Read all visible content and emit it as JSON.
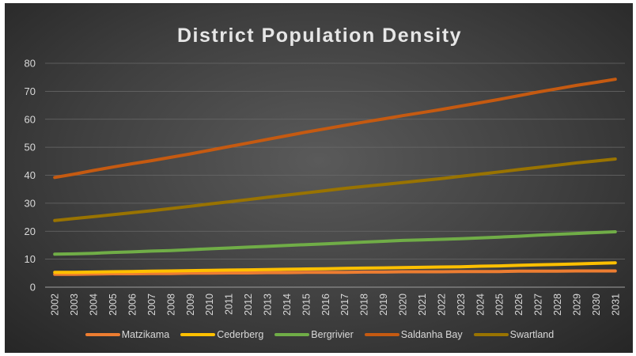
{
  "chart_data": {
    "type": "line",
    "title": "District Population Density",
    "xlabel": "",
    "ylabel": "",
    "ylim": [
      0,
      80
    ],
    "yticks": [
      0,
      10,
      20,
      30,
      40,
      50,
      60,
      70,
      80
    ],
    "grid": true,
    "legend_position": "bottom",
    "x": [
      "2002",
      "2003",
      "2004",
      "2005",
      "2006",
      "2007",
      "2008",
      "2009",
      "2010",
      "2011",
      "2012",
      "2013",
      "2014",
      "2015",
      "2016",
      "2017",
      "2018",
      "2019",
      "2020",
      "2021",
      "2022",
      "2023",
      "2024",
      "2025",
      "2026",
      "2027",
      "2028",
      "2029",
      "2030",
      "2031"
    ],
    "series": [
      {
        "name": "Matzikama",
        "color": "#ed7d31",
        "values": [
          4.6,
          4.6,
          4.7,
          4.8,
          4.8,
          4.9,
          4.9,
          5.0,
          5.0,
          5.1,
          5.1,
          5.2,
          5.2,
          5.3,
          5.3,
          5.3,
          5.4,
          5.4,
          5.5,
          5.5,
          5.5,
          5.6,
          5.6,
          5.6,
          5.7,
          5.7,
          5.7,
          5.8,
          5.8,
          5.8
        ]
      },
      {
        "name": "Cederberg",
        "color": "#ffc000",
        "values": [
          5.3,
          5.3,
          5.4,
          5.5,
          5.6,
          5.7,
          5.8,
          5.9,
          6.0,
          6.1,
          6.2,
          6.3,
          6.4,
          6.5,
          6.6,
          6.7,
          6.8,
          6.9,
          7.0,
          7.1,
          7.2,
          7.3,
          7.5,
          7.6,
          7.8,
          8.0,
          8.1,
          8.3,
          8.5,
          8.7
        ]
      },
      {
        "name": "Bergrivier",
        "color": "#70ad47",
        "values": [
          11.8,
          11.9,
          12.1,
          12.4,
          12.6,
          12.9,
          13.1,
          13.4,
          13.7,
          14.0,
          14.3,
          14.6,
          14.9,
          15.2,
          15.5,
          15.8,
          16.1,
          16.4,
          16.7,
          16.9,
          17.1,
          17.3,
          17.6,
          17.9,
          18.2,
          18.6,
          18.9,
          19.2,
          19.5,
          19.8
        ]
      },
      {
        "name": "Saldanha Bay",
        "color": "#c55a11",
        "values": [
          39.2,
          40.4,
          41.7,
          42.9,
          44.1,
          45.2,
          46.4,
          47.6,
          48.9,
          50.2,
          51.5,
          52.8,
          54.1,
          55.4,
          56.6,
          57.8,
          59.0,
          60.1,
          61.3,
          62.4,
          63.5,
          64.7,
          65.9,
          67.1,
          68.4,
          69.7,
          70.9,
          72.1,
          73.2,
          74.3
        ]
      },
      {
        "name": "Swartland",
        "color": "#997300",
        "values": [
          23.8,
          24.5,
          25.2,
          25.9,
          26.6,
          27.3,
          28.1,
          28.9,
          29.7,
          30.5,
          31.3,
          32.1,
          32.9,
          33.7,
          34.5,
          35.3,
          36.0,
          36.7,
          37.4,
          38.1,
          38.8,
          39.6,
          40.4,
          41.2,
          42.0,
          42.8,
          43.6,
          44.4,
          45.1,
          45.8
        ]
      }
    ]
  }
}
